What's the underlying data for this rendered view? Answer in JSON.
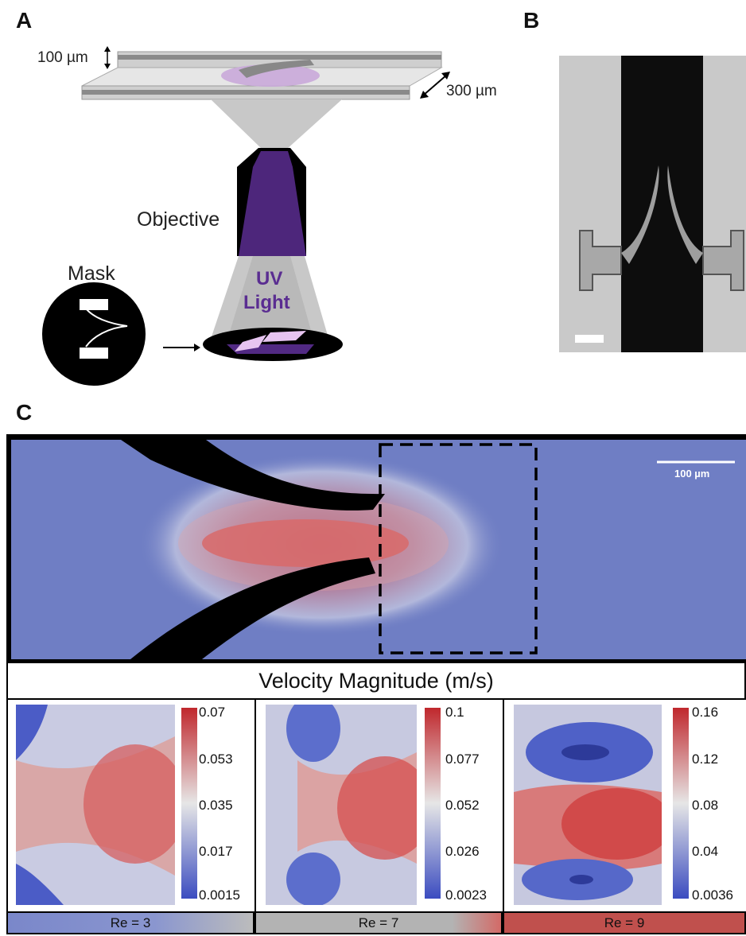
{
  "panels": {
    "a": "A",
    "b": "B",
    "c": "C"
  },
  "panel_a": {
    "dim_height": "100 µm",
    "dim_width": "300 µm",
    "objective_label": "Objective",
    "mask_label": "Mask",
    "uv_label_1": "UV",
    "uv_label_2": "Light",
    "uv_color": "#5a2d91"
  },
  "panel_c": {
    "scale_label": "100 µm",
    "colorbar_title": "Velocity Magnitude (m/s)",
    "plots": [
      {
        "re_label": "Re = 3",
        "ticks": [
          "0.07",
          "0.053",
          "0.035",
          "0.017",
          "0.0015"
        ],
        "bar_color": "#8a96cf"
      },
      {
        "re_label": "Re = 7",
        "ticks": [
          "0.1",
          "0.077",
          "0.052",
          "0.026",
          "0.0023"
        ],
        "bar_color": "#b3b3b3"
      },
      {
        "re_label": "Re = 9",
        "ticks": [
          "0.16",
          "0.12",
          "0.08",
          "0.04",
          "0.0036"
        ],
        "bar_color": "#c0504d"
      }
    ],
    "colors": {
      "low": "#3b4cc0",
      "mid": "#dddddd",
      "high": "#b40426",
      "background": "#6f7ec4"
    }
  }
}
